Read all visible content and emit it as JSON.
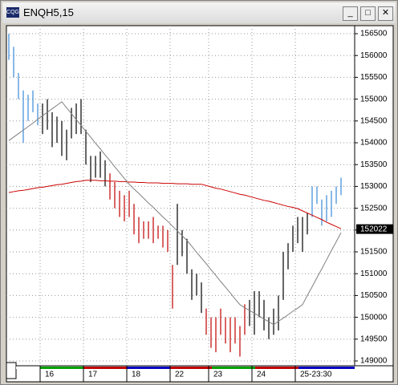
{
  "chart_data": {
    "type": "ohlc",
    "title": "ENQH5,15",
    "categories": [
      null,
      null,
      null,
      null,
      null,
      null,
      null,
      "16",
      null,
      null,
      null,
      null,
      null,
      null,
      null,
      null,
      "17",
      null,
      null,
      null,
      null,
      null,
      null,
      null,
      null,
      "18",
      null,
      null,
      null,
      null,
      null,
      null,
      null,
      null,
      "22",
      null,
      null,
      null,
      null,
      null,
      null,
      null,
      "23",
      null,
      null,
      null,
      null,
      null,
      null,
      null,
      null,
      "24",
      null,
      null,
      null,
      null,
      null,
      null,
      null,
      null,
      "25-23:30",
      null,
      null,
      null,
      null,
      null,
      null,
      null,
      null,
      null
    ],
    "high": [
      156500,
      156200,
      155600,
      155200,
      155100,
      155200,
      154900,
      154900,
      155000,
      154700,
      154600,
      154500,
      154300,
      154800,
      154900,
      155000,
      154300,
      153700,
      153700,
      153800,
      153600,
      153300,
      153100,
      152900,
      152800,
      152900,
      152600,
      152300,
      152200,
      152200,
      152300,
      152100,
      152100,
      152000,
      151200,
      152600,
      152000,
      151800,
      151100,
      151000,
      150800,
      150200,
      150000,
      150000,
      150200,
      150000,
      150000,
      150000,
      149800,
      150300,
      150400,
      150600,
      150600,
      150400,
      150000,
      150200,
      150500,
      151500,
      151700,
      152100,
      152300,
      152300,
      152400,
      153000,
      153000,
      152700,
      152800,
      152900,
      153000,
      153200
    ],
    "low": [
      155900,
      155500,
      155000,
      154000,
      154500,
      154700,
      154400,
      154200,
      154300,
      153900,
      154000,
      153700,
      153600,
      154100,
      154200,
      154200,
      153500,
      153100,
      153200,
      153200,
      153000,
      152700,
      152500,
      152300,
      152200,
      152300,
      151900,
      151700,
      151800,
      151800,
      151700,
      151800,
      151600,
      151500,
      150200,
      151200,
      151400,
      151000,
      150400,
      150500,
      150100,
      149600,
      149300,
      149200,
      149600,
      149400,
      149200,
      149400,
      149100,
      149600,
      149800,
      149600,
      150000,
      149700,
      149500,
      149600,
      149700,
      150400,
      151100,
      151500,
      151700,
      151500,
      151900,
      152300,
      152600,
      152100,
      152200,
      152300,
      152600,
      152800
    ],
    "bar_colors": [
      "#3a8ad8",
      "#3a8ad8",
      "#3a8ad8",
      "#3a8ad8",
      "#3a8ad8",
      "#3a8ad8",
      "#3a8ad8",
      "#000000",
      "#000000",
      "#000000",
      "#000000",
      "#000000",
      "#000000",
      "#000000",
      "#000000",
      "#000000",
      "#000000",
      "#000000",
      "#000000",
      "#000000",
      "#000000",
      "#c00000",
      "#c00000",
      "#c00000",
      "#c00000",
      "#c00000",
      "#c00000",
      "#c00000",
      "#c00000",
      "#c00000",
      "#c00000",
      "#c00000",
      "#c00000",
      "#c00000",
      "#c00000",
      "#000000",
      "#000000",
      "#000000",
      "#000000",
      "#000000",
      "#000000",
      "#c00000",
      "#c00000",
      "#c00000",
      "#c00000",
      "#c00000",
      "#c00000",
      "#c00000",
      "#c00000",
      "#c00000",
      "#000000",
      "#000000",
      "#000000",
      "#000000",
      "#000000",
      "#000000",
      "#000000",
      "#000000",
      "#000000",
      "#000000",
      "#000000",
      "#000000",
      "#000000",
      "#3a8ad8",
      "#3a8ad8",
      "#3a8ad8",
      "#3a8ad8",
      "#3a8ad8",
      "#3a8ad8",
      "#3a8ad8"
    ],
    "lines": [
      {
        "color": "#cc0000",
        "values": [
          152860,
          152880,
          152900,
          152910,
          152930,
          152950,
          152970,
          152980,
          153000,
          153020,
          153040,
          153050,
          153070,
          153090,
          153110,
          153120,
          153140,
          153140,
          153140,
          153130,
          153130,
          153120,
          153120,
          153110,
          153110,
          153100,
          153100,
          153090,
          153090,
          153080,
          153080,
          153080,
          153070,
          153070,
          153070,
          153060,
          153060,
          153060,
          153050,
          153050,
          153050,
          153020,
          152990,
          152960,
          152940,
          152910,
          152880,
          152850,
          152820,
          152800,
          152770,
          152740,
          152710,
          152680,
          152660,
          152630,
          152600,
          152570,
          152540,
          152520,
          152490,
          152440,
          152390,
          152340,
          152290,
          152240,
          152180,
          152130,
          152080,
          152030
        ]
      },
      {
        "color": "#808080",
        "values": [
          154050,
          154130,
          154210,
          154290,
          154370,
          154450,
          154540,
          154620,
          154700,
          154780,
          154860,
          154940,
          154800,
          154670,
          154530,
          154400,
          154260,
          154130,
          153990,
          153860,
          153720,
          153590,
          153450,
          153320,
          153180,
          153050,
          152940,
          152840,
          152730,
          152620,
          152520,
          152410,
          152300,
          152200,
          152090,
          151980,
          151870,
          151760,
          151630,
          151490,
          151360,
          151230,
          151090,
          150960,
          150820,
          150690,
          150560,
          150420,
          150290,
          150220,
          150160,
          150090,
          150030,
          149960,
          149900,
          149830,
          149910,
          149980,
          150060,
          150140,
          150210,
          150290,
          150500,
          150700,
          150910,
          151110,
          151320,
          151530,
          151730,
          151940
        ]
      }
    ],
    "ylim": [
      148890,
      156684
    ],
    "yticks": [
      149000,
      149500,
      150000,
      150500,
      151000,
      151500,
      152000,
      152500,
      153000,
      153500,
      154000,
      154500,
      155000,
      155500,
      156000,
      156500
    ],
    "last_price": 152022,
    "grid": true
  }
}
